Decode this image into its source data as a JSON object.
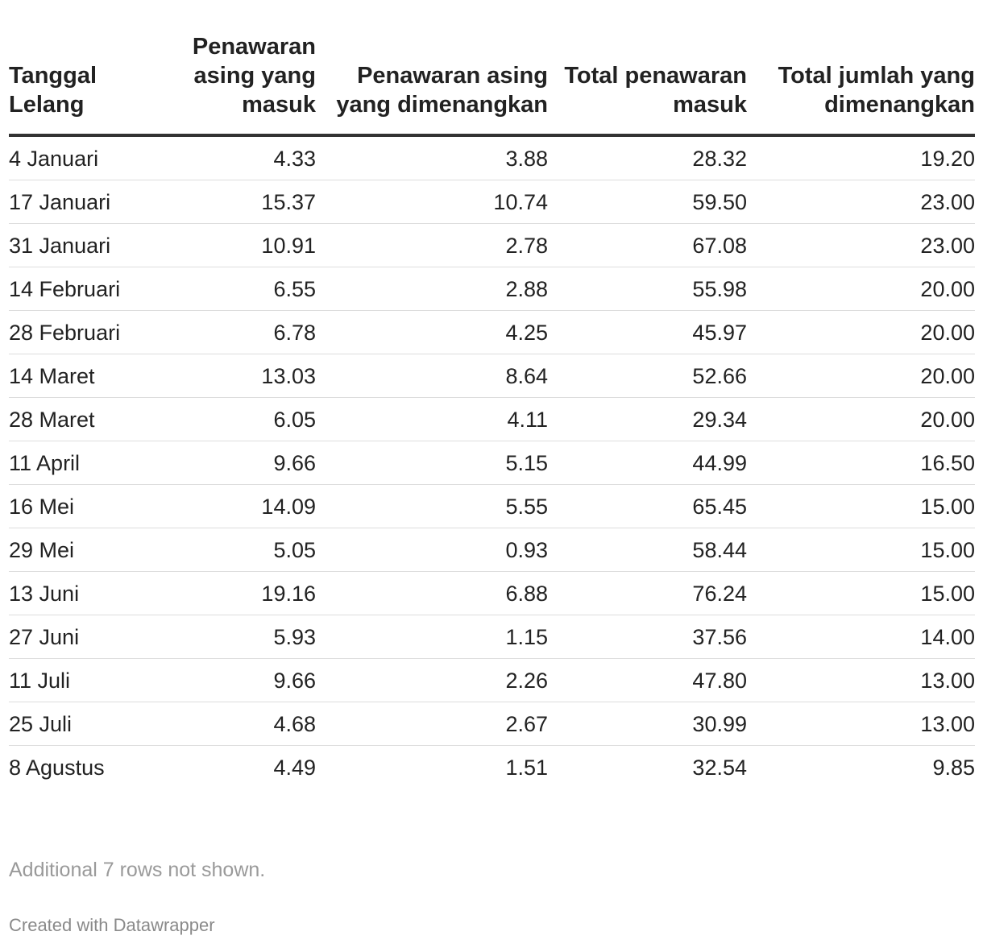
{
  "chart_data": {
    "type": "table",
    "columns": [
      "Tanggal Lelang",
      "Penawaran asing yang masuk",
      "Penawaran asing yang dimenangkan",
      "Total penawaran masuk",
      "Total jumlah yang dimenangkan"
    ],
    "rows": [
      [
        "4 Januari",
        "4.33",
        "3.88",
        "28.32",
        "19.20"
      ],
      [
        "17 Januari",
        "15.37",
        "10.74",
        "59.50",
        "23.00"
      ],
      [
        "31 Januari",
        "10.91",
        "2.78",
        "67.08",
        "23.00"
      ],
      [
        "14 Februari",
        "6.55",
        "2.88",
        "55.98",
        "20.00"
      ],
      [
        "28 Februari",
        "6.78",
        "4.25",
        "45.97",
        "20.00"
      ],
      [
        "14 Maret",
        "13.03",
        "8.64",
        "52.66",
        "20.00"
      ],
      [
        "28 Maret",
        "6.05",
        "4.11",
        "29.34",
        "20.00"
      ],
      [
        "11 April",
        "9.66",
        "5.15",
        "44.99",
        "16.50"
      ],
      [
        "16 Mei",
        "14.09",
        "5.55",
        "65.45",
        "15.00"
      ],
      [
        "29 Mei",
        "5.05",
        "0.93",
        "58.44",
        "15.00"
      ],
      [
        "13 Juni",
        "19.16",
        "6.88",
        "76.24",
        "15.00"
      ],
      [
        "27 Juni",
        "5.93",
        "1.15",
        "37.56",
        "14.00"
      ],
      [
        "11 Juli",
        "9.66",
        "2.26",
        "47.80",
        "13.00"
      ],
      [
        "25 Juli",
        "4.68",
        "2.67",
        "30.99",
        "13.00"
      ],
      [
        "8 Agustus",
        "4.49",
        "1.51",
        "32.54",
        "9.85"
      ]
    ],
    "note": "Additional 7 rows not shown.",
    "credit": "Created with Datawrapper"
  }
}
